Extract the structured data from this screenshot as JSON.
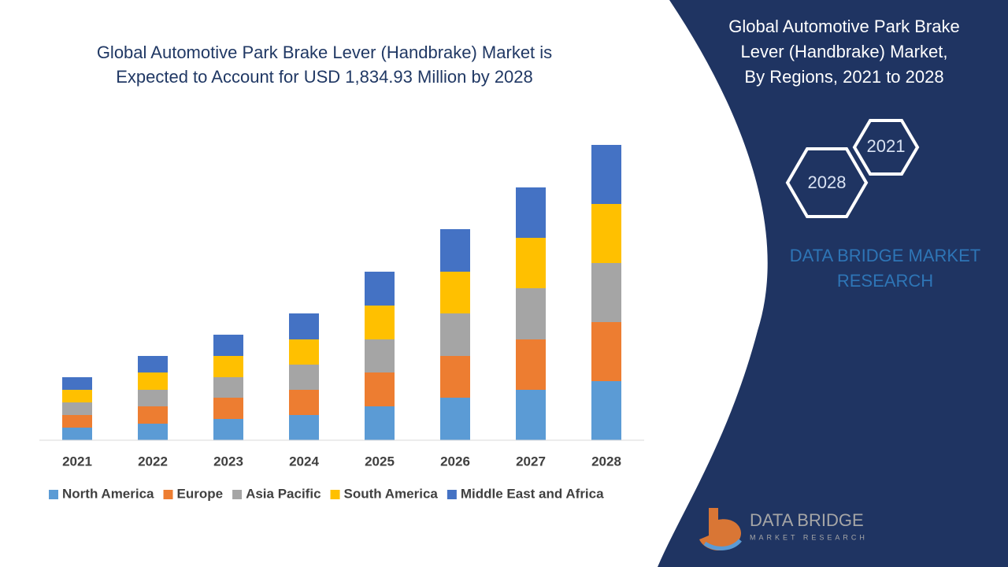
{
  "chart_data": {
    "type": "stacked_bar",
    "title": [
      "Global Automotive Park Brake Lever (Handbrake) Market is",
      "Expected to Account for USD 1,834.93 Million by 2028"
    ],
    "categories": [
      "2021",
      "2022",
      "2023",
      "2024",
      "2025",
      "2026",
      "2027",
      "2028"
    ],
    "series": [
      {
        "name": "North America",
        "color": "#5b9bd5",
        "values": [
          16,
          21,
          27,
          32,
          43,
          54,
          64,
          75
        ]
      },
      {
        "name": "Europe",
        "color": "#ed7d31",
        "values": [
          16,
          22,
          27,
          32,
          43,
          53,
          64,
          75
        ]
      },
      {
        "name": "Asia Pacific",
        "color": "#a5a5a5",
        "values": [
          16,
          21,
          26,
          32,
          42,
          54,
          65,
          75
        ]
      },
      {
        "name": "South America",
        "color": "#ffc000",
        "values": [
          16,
          22,
          27,
          32,
          43,
          53,
          64,
          75
        ]
      },
      {
        "name": "Middle East and Africa",
        "color": "#4472c4",
        "values": [
          16,
          21,
          27,
          33,
          43,
          54,
          64,
          75
        ]
      }
    ],
    "ylim": [
      0,
      400
    ],
    "legend": "bottom"
  },
  "panel": {
    "title": [
      "Global Automotive Park Brake",
      "Lever (Handbrake) Market,",
      "By Regions, 2021 to 2028"
    ],
    "badges": [
      "2021",
      "2028"
    ],
    "brand": [
      "DATA BRIDGE MARKET",
      "RESEARCH"
    ]
  },
  "logo": {
    "name": "DATA BRIDGE",
    "tagline": "MARKET RESEARCH"
  }
}
